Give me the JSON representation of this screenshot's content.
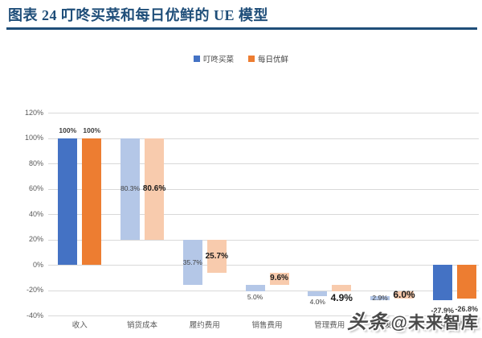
{
  "header": {
    "title": "图表 24  叮咚买菜和每日优鲜的 UE 模型",
    "title_color": "#1F4E79"
  },
  "watermark": {
    "logo": "头条",
    "handle": "@未来智库"
  },
  "chart_data": {
    "type": "bar",
    "subtype": "waterfall-comparison",
    "title": "图表 24  叮咚买菜和每日优鲜的 UE 模型",
    "xlabel": "",
    "ylabel": "",
    "ylim": [
      -40,
      120
    ],
    "ytick_step": 20,
    "ytick_labels": [
      "120%",
      "100%",
      "80%",
      "60%",
      "40%",
      "20%",
      "0%",
      "-20%",
      "-40%"
    ],
    "grid": true,
    "grid_color": "#D9D9D9",
    "legend_position": "top",
    "categories": [
      "收入",
      "销货成本",
      "履约费用",
      "销售费用",
      "管理费用",
      "研发费用",
      "营业利润"
    ],
    "series": [
      {
        "name": "叮咚买菜",
        "key": "dingdong",
        "color": "#4472C4",
        "light_color": "#B4C7E7",
        "values": [
          100,
          80.3,
          35.7,
          5.0,
          4.0,
          2.9,
          -27.9
        ],
        "bars": [
          {
            "span": [
              0,
              100
            ],
            "solid": true,
            "label": "100%",
            "pos": "above"
          },
          {
            "span": [
              19.7,
              100
            ],
            "solid": false,
            "label": "80.3%",
            "pos": "inside"
          },
          {
            "span": [
              -16.0,
              19.7
            ],
            "solid": false,
            "label": "35.7%",
            "pos": "inside"
          },
          {
            "span": [
              -21.0,
              -16.0
            ],
            "solid": false,
            "label": "5.0%",
            "pos": "below"
          },
          {
            "span": [
              -25.0,
              -21.0
            ],
            "solid": false,
            "label": "4.0%",
            "pos": "below"
          },
          {
            "span": [
              -27.9,
              -25.0
            ],
            "solid": false,
            "label": "2.9%",
            "pos": "inside"
          },
          {
            "span": [
              -27.9,
              0
            ],
            "solid": true,
            "label": "-27.9%",
            "pos": "below-far"
          }
        ]
      },
      {
        "name": "每日优鲜",
        "key": "missfresh",
        "color": "#ED7D31",
        "light_color": "#F8CBAD",
        "values": [
          100,
          80.6,
          25.7,
          9.6,
          4.9,
          6.0,
          -26.8
        ],
        "bars": [
          {
            "span": [
              0,
              100
            ],
            "solid": true,
            "label": "100%",
            "pos": "above"
          },
          {
            "span": [
              19.4,
              100
            ],
            "solid": false,
            "label": "80.6%",
            "pos": "inside",
            "em": true
          },
          {
            "span": [
              -6.3,
              19.4
            ],
            "solid": false,
            "label": "25.7%",
            "pos": "inside",
            "em": true
          },
          {
            "span": [
              -15.9,
              -6.3
            ],
            "solid": false,
            "label": "9.6%",
            "pos": "inside",
            "em": true
          },
          {
            "span": [
              -20.8,
              -15.9
            ],
            "solid": false,
            "label": "4.9%",
            "pos": "below",
            "em": true,
            "big": true
          },
          {
            "span": [
              -26.8,
              -20.8
            ],
            "solid": false,
            "label": "6.0%",
            "pos": "inside",
            "em": true,
            "big": true
          },
          {
            "span": [
              -26.8,
              0
            ],
            "solid": true,
            "label": "-26.8%",
            "pos": "below-far"
          }
        ]
      }
    ]
  }
}
